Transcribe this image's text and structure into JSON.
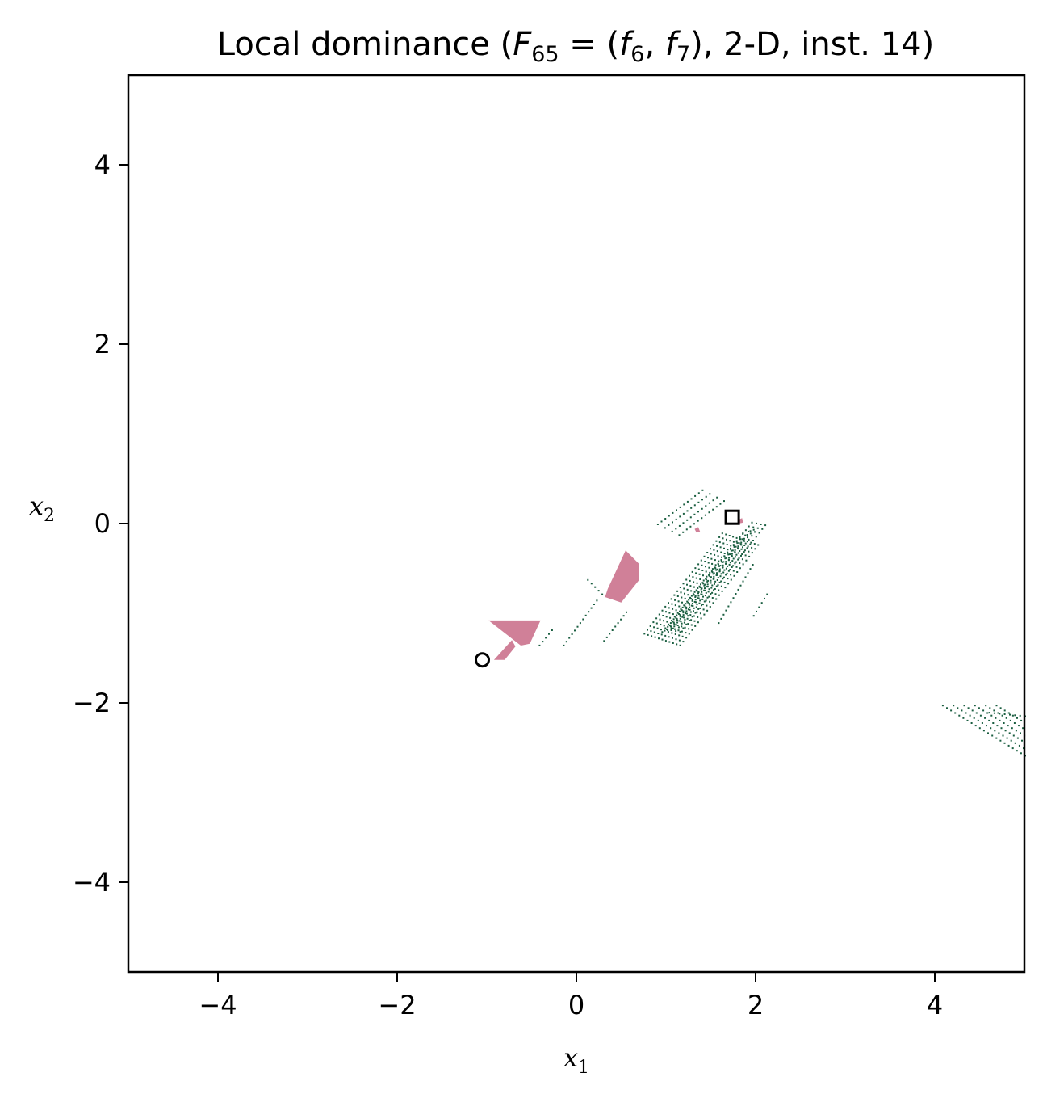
{
  "chart_data": {
    "type": "scatter",
    "title": {
      "prefix": "Local dominance (",
      "F": "F",
      "F_sub": "65",
      "eq": " = (",
      "f1": "f",
      "f1_sub": "6",
      "comma": ", ",
      "f2": "f",
      "f2_sub": "7",
      "suffix": "), 2-D, inst. 14)"
    },
    "xlabel": {
      "base": "x",
      "sub": "1"
    },
    "ylabel": {
      "base": "x",
      "sub": "2"
    },
    "xlim": [
      -5,
      5
    ],
    "ylim": [
      -5,
      5
    ],
    "xticks": [
      -4,
      -2,
      0,
      2,
      4
    ],
    "yticks": [
      -4,
      -2,
      0,
      2,
      4
    ],
    "grid": false,
    "colors": {
      "region": "#d08098",
      "dots": "#1a5e40",
      "frame": "#000000"
    },
    "regions": [
      {
        "name": "region-quad",
        "points": [
          [
            0.32,
            -0.82
          ],
          [
            0.5,
            -0.88
          ],
          [
            0.7,
            -0.63
          ],
          [
            0.7,
            -0.45
          ],
          [
            0.55,
            -0.3
          ],
          [
            0.35,
            -0.73
          ]
        ]
      },
      {
        "name": "region-wedge-upper",
        "points": [
          [
            -0.98,
            -1.08
          ],
          [
            -0.4,
            -1.08
          ],
          [
            -0.52,
            -1.34
          ],
          [
            -0.62,
            -1.36
          ]
        ]
      },
      {
        "name": "region-wedge-lower",
        "points": [
          [
            -0.92,
            -1.52
          ],
          [
            -0.8,
            -1.52
          ],
          [
            -0.68,
            -1.37
          ],
          [
            -0.72,
            -1.3
          ]
        ]
      },
      {
        "name": "region-speck",
        "points": [
          [
            1.32,
            -0.06
          ],
          [
            1.36,
            -0.04
          ],
          [
            1.38,
            -0.09
          ],
          [
            1.34,
            -0.1
          ]
        ]
      },
      {
        "name": "region-speck-2",
        "points": [
          [
            1.8,
            0.04
          ],
          [
            1.85,
            0.06
          ],
          [
            1.86,
            0.01
          ],
          [
            1.81,
            0.0
          ]
        ]
      }
    ],
    "dot_strokes": [
      {
        "from": [
          0.75,
          -1.22
        ],
        "to": [
          1.62,
          -0.1
        ],
        "rows": 11,
        "row_step": [
          0.04,
          -0.013
        ]
      },
      {
        "from": [
          1.0,
          -1.17
        ],
        "to": [
          1.95,
          0.02
        ],
        "rows": 4,
        "row_step": [
          0.05,
          -0.01
        ]
      },
      {
        "from": [
          0.9,
          0.0
        ],
        "to": [
          1.4,
          0.38
        ],
        "rows": 4,
        "row_step": [
          0.08,
          -0.04
        ]
      },
      {
        "from": [
          0.95,
          -1.2
        ],
        "to": [
          1.85,
          -0.1
        ],
        "rows": 3,
        "row_step": [
          0.06,
          0.02
        ]
      },
      {
        "from": [
          -0.15,
          -1.35
        ],
        "to": [
          0.22,
          -0.85
        ],
        "rows": 1,
        "row_step": [
          0,
          0
        ]
      },
      {
        "from": [
          -0.42,
          -1.35
        ],
        "to": [
          -0.28,
          -1.18
        ],
        "rows": 1,
        "row_step": [
          0,
          0
        ]
      },
      {
        "from": [
          0.12,
          -0.62
        ],
        "to": [
          0.28,
          -0.78
        ],
        "rows": 1,
        "row_step": [
          0,
          0
        ]
      },
      {
        "from": [
          0.3,
          -1.3
        ],
        "to": [
          0.55,
          -0.98
        ],
        "rows": 1,
        "row_step": [
          0,
          0
        ]
      },
      {
        "from": [
          1.58,
          -1.1
        ],
        "to": [
          1.96,
          -0.45
        ],
        "rows": 1,
        "row_step": [
          0,
          0
        ]
      },
      {
        "from": [
          1.97,
          -1.02
        ],
        "to": [
          2.12,
          -0.78
        ],
        "rows": 1,
        "row_step": [
          0,
          0
        ]
      },
      {
        "from": [
          4.08,
          -2.02
        ],
        "to": [
          5.0,
          -2.58
        ],
        "rows": 6,
        "row_step": [
          0.12,
          0.0
        ]
      },
      {
        "from": [
          4.6,
          -2.1
        ],
        "to": [
          5.0,
          -2.14
        ],
        "rows": 1,
        "row_step": [
          0,
          0
        ]
      }
    ],
    "markers": [
      {
        "name": "circle-marker",
        "shape": "circle",
        "x": -1.05,
        "y": -1.52
      },
      {
        "name": "square-marker",
        "shape": "square",
        "x": 1.74,
        "y": 0.07
      }
    ]
  }
}
